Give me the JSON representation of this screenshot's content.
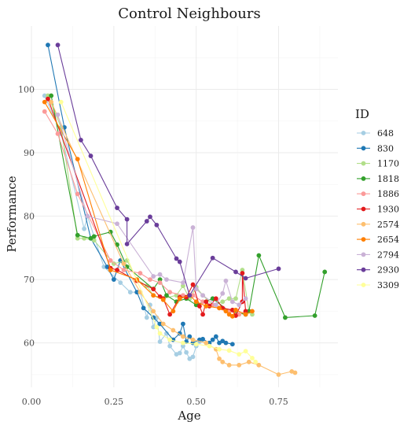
{
  "chart_data": {
    "type": "line",
    "title": "Control Neighbours",
    "xlabel": "Age",
    "ylabel": "Performance",
    "xlim": [
      0,
      0.93
    ],
    "ylim": [
      53,
      110
    ],
    "x_ticks": [
      0,
      0.25,
      0.5,
      0.75
    ],
    "x_tick_labels": [
      "0.00",
      "0.25",
      "0.50",
      "0.75"
    ],
    "y_ticks": [
      60,
      70,
      80,
      90,
      100
    ],
    "y_tick_labels": [
      "60",
      "70",
      "80",
      "90",
      "100"
    ],
    "grid": true,
    "legend_title": "ID",
    "legend_position": "right",
    "series": [
      {
        "name": "648",
        "color": "#a6cee3",
        "points": [
          [
            0.04,
            99
          ],
          [
            0.09,
            93
          ],
          [
            0.16,
            78
          ],
          [
            0.17,
            80
          ],
          [
            0.22,
            72
          ],
          [
            0.27,
            69.5
          ],
          [
            0.3,
            68
          ],
          [
            0.33,
            68
          ],
          [
            0.35,
            64
          ],
          [
            0.36,
            66
          ],
          [
            0.37,
            62.5
          ],
          [
            0.38,
            64
          ],
          [
            0.39,
            60.2
          ],
          [
            0.41,
            61.5
          ],
          [
            0.42,
            59.5
          ],
          [
            0.44,
            58.2
          ],
          [
            0.45,
            58.4
          ],
          [
            0.46,
            59.5
          ],
          [
            0.47,
            58.5
          ],
          [
            0.48,
            57.5
          ],
          [
            0.49,
            57.8
          ],
          [
            0.5,
            59.5
          ],
          [
            0.51,
            60.2
          ]
        ]
      },
      {
        "name": "830",
        "color": "#1f78b4",
        "points": [
          [
            0.05,
            107
          ],
          [
            0.1,
            94
          ],
          [
            0.18,
            76.5
          ],
          [
            0.23,
            72
          ],
          [
            0.25,
            70
          ],
          [
            0.27,
            73
          ],
          [
            0.32,
            68
          ],
          [
            0.34,
            65.5
          ],
          [
            0.37,
            64
          ],
          [
            0.39,
            63
          ],
          [
            0.43,
            60.5
          ],
          [
            0.45,
            61.5
          ],
          [
            0.46,
            63
          ],
          [
            0.47,
            60.2
          ],
          [
            0.48,
            61
          ],
          [
            0.49,
            60
          ],
          [
            0.51,
            60.5
          ],
          [
            0.52,
            60.6
          ],
          [
            0.54,
            60
          ],
          [
            0.55,
            60.5
          ],
          [
            0.56,
            61
          ],
          [
            0.57,
            60
          ],
          [
            0.58,
            60.3
          ],
          [
            0.59,
            60
          ],
          [
            0.61,
            59.8
          ]
        ]
      },
      {
        "name": "1170",
        "color": "#b2df8a",
        "points": [
          [
            0.05,
            99
          ],
          [
            0.09,
            94
          ],
          [
            0.14,
            76.5
          ],
          [
            0.16,
            76.5
          ],
          [
            0.19,
            76.2
          ],
          [
            0.25,
            72.5
          ],
          [
            0.29,
            73
          ],
          [
            0.32,
            70
          ],
          [
            0.35,
            69
          ],
          [
            0.37,
            67.5
          ],
          [
            0.4,
            67
          ],
          [
            0.44,
            67.5
          ],
          [
            0.46,
            69
          ],
          [
            0.48,
            67
          ],
          [
            0.5,
            68.8
          ],
          [
            0.52,
            67.5
          ],
          [
            0.55,
            66
          ],
          [
            0.58,
            66.5
          ],
          [
            0.6,
            67
          ],
          [
            0.62,
            67
          ],
          [
            0.64,
            71.5
          ],
          [
            0.66,
            65
          ],
          [
            0.67,
            64.5
          ]
        ]
      },
      {
        "name": "1818",
        "color": "#33a02c",
        "points": [
          [
            0.06,
            99
          ],
          [
            0.14,
            77
          ],
          [
            0.18,
            76.5
          ],
          [
            0.19,
            76.8
          ],
          [
            0.24,
            77.5
          ],
          [
            0.26,
            75.5
          ],
          [
            0.29,
            72
          ],
          [
            0.37,
            68.5
          ],
          [
            0.39,
            70
          ],
          [
            0.41,
            67.5
          ],
          [
            0.44,
            66.5
          ],
          [
            0.47,
            67
          ],
          [
            0.5,
            66
          ],
          [
            0.55,
            67
          ],
          [
            0.6,
            65
          ],
          [
            0.65,
            64.5
          ],
          [
            0.66,
            65
          ],
          [
            0.69,
            73.8
          ],
          [
            0.77,
            64
          ],
          [
            0.86,
            64.3
          ],
          [
            0.89,
            71.2
          ]
        ]
      },
      {
        "name": "1886",
        "color": "#fb9a99",
        "points": [
          [
            0.04,
            96.5
          ],
          [
            0.08,
            93
          ],
          [
            0.14,
            83.5
          ],
          [
            0.24,
            73
          ],
          [
            0.28,
            71.5
          ],
          [
            0.33,
            71
          ],
          [
            0.36,
            70
          ],
          [
            0.39,
            69.5
          ],
          [
            0.42,
            68
          ],
          [
            0.46,
            67.5
          ],
          [
            0.49,
            67.5
          ],
          [
            0.52,
            66.5
          ],
          [
            0.55,
            66
          ],
          [
            0.57,
            65.5
          ],
          [
            0.6,
            65
          ],
          [
            0.63,
            64.5
          ],
          [
            0.65,
            65
          ]
        ]
      },
      {
        "name": "1930",
        "color": "#e31a1c",
        "points": [
          [
            0.05,
            98.5
          ],
          [
            0.24,
            71.8
          ],
          [
            0.26,
            71.5
          ],
          [
            0.32,
            69.8
          ],
          [
            0.37,
            68.5
          ],
          [
            0.39,
            67.3
          ],
          [
            0.4,
            67
          ],
          [
            0.42,
            64.5
          ],
          [
            0.45,
            67.2
          ],
          [
            0.47,
            67.2
          ],
          [
            0.49,
            69.2
          ],
          [
            0.51,
            65.8
          ],
          [
            0.52,
            64.5
          ],
          [
            0.53,
            66.5
          ],
          [
            0.54,
            65.8
          ],
          [
            0.56,
            67
          ],
          [
            0.58,
            65.5
          ],
          [
            0.61,
            65.2
          ],
          [
            0.62,
            64.3
          ],
          [
            0.64,
            66.5
          ],
          [
            0.64,
            71
          ],
          [
            0.65,
            65
          ]
        ]
      },
      {
        "name": "2574",
        "color": "#fdbf6f",
        "points": [
          [
            0.06,
            98
          ],
          [
            0.28,
            72.5
          ],
          [
            0.33,
            68
          ],
          [
            0.37,
            65
          ],
          [
            0.4,
            63
          ],
          [
            0.43,
            62
          ],
          [
            0.46,
            61
          ],
          [
            0.49,
            60.5
          ],
          [
            0.53,
            60
          ],
          [
            0.56,
            59
          ],
          [
            0.57,
            57.5
          ],
          [
            0.58,
            57
          ],
          [
            0.6,
            56.5
          ],
          [
            0.63,
            56.5
          ],
          [
            0.66,
            57
          ],
          [
            0.69,
            56.5
          ],
          [
            0.75,
            55
          ],
          [
            0.79,
            55.5
          ],
          [
            0.8,
            55.3
          ]
        ]
      },
      {
        "name": "2654",
        "color": "#ff7f00",
        "points": [
          [
            0.04,
            98
          ],
          [
            0.14,
            89
          ],
          [
            0.24,
            71.5
          ],
          [
            0.32,
            70
          ],
          [
            0.37,
            67.5
          ],
          [
            0.4,
            66.8
          ],
          [
            0.43,
            65
          ],
          [
            0.45,
            67
          ],
          [
            0.48,
            67.5
          ],
          [
            0.5,
            66.5
          ],
          [
            0.53,
            65.8
          ],
          [
            0.57,
            65.5
          ],
          [
            0.59,
            65
          ],
          [
            0.6,
            64.5
          ],
          [
            0.61,
            64.2
          ],
          [
            0.62,
            65.2
          ],
          [
            0.65,
            64.5
          ],
          [
            0.67,
            65
          ]
        ]
      },
      {
        "name": "2794",
        "color": "#cab2d6",
        "points": [
          [
            0.08,
            96
          ],
          [
            0.17,
            80
          ],
          [
            0.26,
            78.8
          ],
          [
            0.37,
            70.5
          ],
          [
            0.39,
            70.8
          ],
          [
            0.41,
            70
          ],
          [
            0.46,
            69.5
          ],
          [
            0.49,
            78.2
          ],
          [
            0.5,
            68.5
          ],
          [
            0.52,
            67.5
          ],
          [
            0.56,
            66
          ],
          [
            0.58,
            67.8
          ],
          [
            0.59,
            69.8
          ],
          [
            0.61,
            66.5
          ],
          [
            0.63,
            66
          ],
          [
            0.65,
            67
          ]
        ]
      },
      {
        "name": "2930",
        "color": "#6a3d9a",
        "points": [
          [
            0.08,
            107
          ],
          [
            0.15,
            92
          ],
          [
            0.18,
            89.5
          ],
          [
            0.26,
            81.3
          ],
          [
            0.29,
            79.5
          ],
          [
            0.29,
            75.6
          ],
          [
            0.35,
            79.2
          ],
          [
            0.36,
            79.9
          ],
          [
            0.38,
            78.6
          ],
          [
            0.44,
            73.3
          ],
          [
            0.45,
            72.8
          ],
          [
            0.48,
            67.5
          ],
          [
            0.55,
            73.4
          ],
          [
            0.62,
            71.2
          ],
          [
            0.65,
            70.2
          ],
          [
            0.75,
            71.7
          ]
        ]
      },
      {
        "name": "3309",
        "color": "#ffff99",
        "points": [
          [
            0.09,
            98
          ],
          [
            0.38,
            62.5
          ],
          [
            0.39,
            61.5
          ],
          [
            0.42,
            60.5
          ],
          [
            0.46,
            60
          ],
          [
            0.5,
            59.8
          ],
          [
            0.54,
            59.5
          ],
          [
            0.57,
            59
          ],
          [
            0.6,
            58.8
          ],
          [
            0.63,
            58.2
          ],
          [
            0.65,
            58.7
          ],
          [
            0.67,
            57.6
          ],
          [
            0.68,
            57
          ]
        ]
      }
    ]
  }
}
